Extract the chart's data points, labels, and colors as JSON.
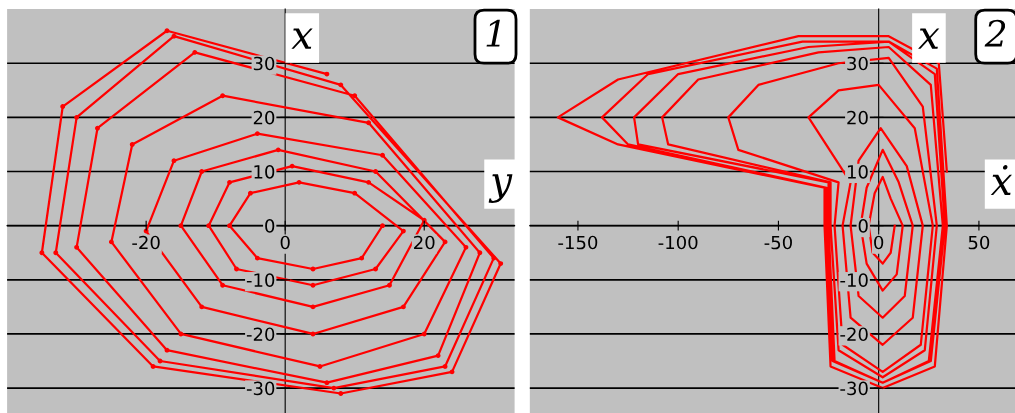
{
  "chart_data": [
    {
      "type": "line",
      "title": "1",
      "xlabel": "y",
      "ylabel": "x",
      "xlim": [
        -40,
        33
      ],
      "ylim": [
        -34.6,
        40
      ],
      "xticks": [
        -20,
        0,
        20
      ],
      "yticks": [
        -30,
        -20,
        -10,
        0,
        10,
        20,
        30
      ],
      "grid": "y",
      "marker": "circle",
      "line_style": "solid",
      "series": [
        {
          "color": "#ff0000",
          "x": [
            14,
            11,
            4,
            -4,
            -8,
            -5,
            2,
            10,
            17,
            13,
            4,
            -7,
            -11,
            -8,
            1,
            12,
            20,
            15,
            4,
            -9,
            -15,
            -12,
            -1,
            13,
            23,
            17,
            4,
            -12,
            -20,
            -16,
            -4,
            14,
            26,
            20,
            5,
            -15,
            -25,
            -22,
            -9,
            12,
            28,
            22,
            6,
            -17,
            -30,
            -27,
            -13,
            10,
            30,
            23,
            7,
            -18,
            -33,
            -30,
            -16,
            8,
            31,
            24,
            8,
            -19,
            -35,
            -32,
            -17,
            6
          ],
          "values": [
            0,
            -6,
            -8,
            -6,
            0,
            6,
            8,
            6,
            -1,
            -8,
            -11,
            -8,
            0,
            8,
            11,
            8,
            1,
            -11,
            -15,
            -11,
            0,
            10,
            14,
            10,
            -3,
            -15,
            -20,
            -15,
            -1,
            12,
            17,
            13,
            -4,
            -20,
            -26,
            -20,
            -3,
            15,
            24,
            19,
            -5,
            -24,
            -29,
            -23,
            -4,
            18,
            32,
            24,
            -6,
            -26,
            -30,
            -25,
            -5,
            20,
            35,
            26,
            -7,
            -27,
            -31,
            -26,
            -5,
            22,
            36,
            28
          ]
        }
      ]
    },
    {
      "type": "line",
      "title": "2",
      "xlabel": "ẋ",
      "ylabel": "x",
      "xlim": [
        -174,
        68
      ],
      "ylim": [
        -34.6,
        40
      ],
      "xticks": [
        -150,
        -100,
        -50,
        0,
        50
      ],
      "yticks": [
        -30,
        -20,
        -10,
        0,
        10,
        20,
        30
      ],
      "grid": "y",
      "line_style": "solid",
      "series": [
        {
          "color": "#ff0000",
          "x": [
            8,
            6,
            2,
            -3,
            -5,
            -2,
            2,
            6,
            12,
            9,
            2,
            -6,
            -9,
            -6,
            2,
            10,
            17,
            13,
            2,
            -10,
            -14,
            -10,
            1,
            14,
            22,
            17,
            2,
            -14,
            -18,
            -14,
            -35,
            -20,
            0,
            18,
            27,
            21,
            2,
            -18,
            -22,
            -20,
            -70,
            -75,
            -60,
            -20,
            5,
            22,
            29,
            23,
            2,
            -20,
            -24,
            -24,
            -105,
            -108,
            -90,
            -30,
            5,
            26,
            32,
            25,
            2,
            -22,
            -25,
            -25,
            -120,
            -122,
            -100,
            -35,
            5,
            28,
            33,
            26,
            2,
            -23,
            -26,
            -26,
            -125,
            -138,
            -115,
            -38,
            5,
            29,
            34,
            28,
            2,
            -24,
            -27,
            -27,
            -130,
            -160,
            -130,
            -40,
            5,
            30,
            34
          ],
          "values": [
            0,
            -5,
            -7,
            -5,
            0,
            6,
            9,
            5,
            0,
            -9,
            -12,
            -7,
            0,
            7,
            14,
            8,
            0,
            -13,
            -17,
            -13,
            0,
            12,
            18,
            11,
            0,
            -17,
            -22,
            -17,
            0,
            8,
            20,
            25,
            26,
            18,
            0,
            -22,
            -27,
            -22,
            0,
            8,
            14,
            20,
            26,
            30,
            31,
            22,
            0,
            -23,
            -28,
            -23,
            0,
            8,
            15,
            20,
            27,
            32,
            33,
            26,
            0,
            -25,
            -29,
            -25,
            0,
            8,
            15,
            20,
            28,
            33,
            34,
            28,
            0,
            -25,
            -29,
            -25,
            0,
            7,
            15,
            20,
            28,
            34,
            34,
            29,
            0,
            -26,
            -30,
            -26,
            0,
            7,
            15,
            20,
            27,
            35,
            35,
            30,
            10
          ]
        }
      ]
    }
  ]
}
